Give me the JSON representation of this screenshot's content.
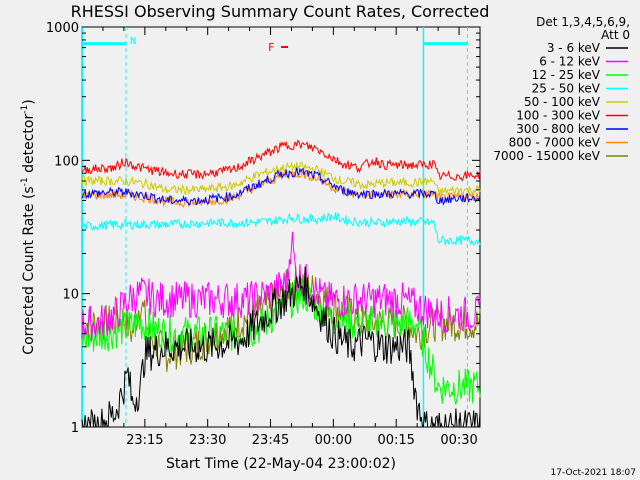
{
  "chart_data": {
    "type": "line",
    "title": "RHESSI Observing Summary Count Rates, Corrected",
    "xlabel": "Start Time (22-May-04 23:00:02)",
    "ylabel_main": "Corrected Count Rate (s",
    "ylabel_sup1": "-1",
    "ylabel_mid": " detector",
    "ylabel_sup2": "-1",
    "ylabel_end": ")",
    "yscale": "log",
    "ylim": [
      1,
      1000
    ],
    "xlim_minutes": [
      0,
      95
    ],
    "x_ticks": [
      {
        "m": 15,
        "label": "23:15"
      },
      {
        "m": 30,
        "label": "23:30"
      },
      {
        "m": 45,
        "label": "23:45"
      },
      {
        "m": 60,
        "label": "00:00"
      },
      {
        "m": 75,
        "label": "00:15"
      },
      {
        "m": 90,
        "label": "00:30"
      }
    ],
    "y_ticks": [
      {
        "v": 1,
        "label": "1"
      },
      {
        "v": 10,
        "label": "10"
      },
      {
        "v": 100,
        "label": "100"
      },
      {
        "v": 1000,
        "label": "1000"
      }
    ],
    "legend_header": [
      "Det 1,3,4,5,6,9,",
      "Att 0"
    ],
    "series": [
      {
        "name": "3 - 6 keV",
        "color": "#000000",
        "points": [
          [
            0,
            1
          ],
          [
            4,
            1
          ],
          [
            8,
            1.3
          ],
          [
            11,
            2.5
          ],
          [
            12,
            1.5
          ],
          [
            14,
            2
          ],
          [
            15,
            3.5
          ],
          [
            20,
            4
          ],
          [
            30,
            4
          ],
          [
            38,
            4.5
          ],
          [
            42,
            6
          ],
          [
            46,
            8
          ],
          [
            50,
            10
          ],
          [
            53,
            12
          ],
          [
            56,
            8
          ],
          [
            60,
            5
          ],
          [
            64,
            4
          ],
          [
            68,
            4.5
          ],
          [
            72,
            4
          ],
          [
            78,
            4
          ],
          [
            80,
            1.5
          ],
          [
            82,
            1
          ],
          [
            86,
            1
          ],
          [
            95,
            1
          ]
        ]
      },
      {
        "name": "6 - 12 keV",
        "color": "#ff00ff",
        "points": [
          [
            0,
            6
          ],
          [
            4,
            6
          ],
          [
            8,
            7
          ],
          [
            11,
            9
          ],
          [
            14,
            10
          ],
          [
            18,
            9
          ],
          [
            26,
            9
          ],
          [
            34,
            9
          ],
          [
            40,
            9
          ],
          [
            45,
            10
          ],
          [
            49,
            12
          ],
          [
            50,
            28
          ],
          [
            51,
            14
          ],
          [
            54,
            12
          ],
          [
            58,
            9
          ],
          [
            62,
            9
          ],
          [
            70,
            9
          ],
          [
            76,
            9
          ],
          [
            80,
            8
          ],
          [
            85,
            7
          ],
          [
            95,
            7
          ]
        ]
      },
      {
        "name": "12 - 25 keV",
        "color": "#00ff00",
        "points": [
          [
            0,
            4.5
          ],
          [
            10,
            5.5
          ],
          [
            14,
            6
          ],
          [
            20,
            5
          ],
          [
            28,
            5
          ],
          [
            36,
            5
          ],
          [
            42,
            5.5
          ],
          [
            46,
            7
          ],
          [
            50,
            9
          ],
          [
            53,
            10
          ],
          [
            56,
            8
          ],
          [
            60,
            6.5
          ],
          [
            66,
            6
          ],
          [
            72,
            6
          ],
          [
            80,
            6
          ],
          [
            85,
            2
          ],
          [
            90,
            2
          ],
          [
            95,
            2
          ]
        ]
      },
      {
        "name": "25 - 50 keV",
        "color": "#00ffff",
        "points": [
          [
            0,
            32
          ],
          [
            10,
            33
          ],
          [
            20,
            33
          ],
          [
            30,
            34
          ],
          [
            40,
            34
          ],
          [
            45,
            35
          ],
          [
            50,
            37
          ],
          [
            55,
            36
          ],
          [
            60,
            38
          ],
          [
            64,
            35
          ],
          [
            70,
            34
          ],
          [
            76,
            35
          ],
          [
            84,
            34
          ],
          [
            85,
            25
          ],
          [
            90,
            25
          ],
          [
            95,
            25
          ]
        ]
      },
      {
        "name": "50 - 100 keV",
        "color": "#cccc00",
        "points": [
          [
            0,
            70
          ],
          [
            10,
            70
          ],
          [
            16,
            66
          ],
          [
            20,
            60
          ],
          [
            28,
            60
          ],
          [
            36,
            64
          ],
          [
            42,
            78
          ],
          [
            48,
            88
          ],
          [
            52,
            90
          ],
          [
            56,
            85
          ],
          [
            62,
            70
          ],
          [
            68,
            65
          ],
          [
            72,
            68
          ],
          [
            80,
            68
          ],
          [
            84,
            70
          ],
          [
            85,
            58
          ],
          [
            90,
            60
          ],
          [
            95,
            60
          ]
        ]
      },
      {
        "name": "100 - 300 keV",
        "color": "#ff0000",
        "points": [
          [
            0,
            85
          ],
          [
            8,
            88
          ],
          [
            10,
            98
          ],
          [
            14,
            88
          ],
          [
            20,
            80
          ],
          [
            28,
            78
          ],
          [
            36,
            85
          ],
          [
            42,
            105
          ],
          [
            48,
            128
          ],
          [
            52,
            132
          ],
          [
            56,
            122
          ],
          [
            62,
            95
          ],
          [
            66,
            88
          ],
          [
            70,
            100
          ],
          [
            72,
            92
          ],
          [
            80,
            92
          ],
          [
            84,
            94
          ],
          [
            85,
            76
          ],
          [
            90,
            76
          ],
          [
            95,
            78
          ]
        ]
      },
      {
        "name": "300 - 800 keV",
        "color": "#0000ff",
        "points": [
          [
            0,
            56
          ],
          [
            10,
            58
          ],
          [
            16,
            54
          ],
          [
            20,
            50
          ],
          [
            28,
            50
          ],
          [
            36,
            54
          ],
          [
            42,
            66
          ],
          [
            48,
            80
          ],
          [
            52,
            82
          ],
          [
            56,
            76
          ],
          [
            62,
            60
          ],
          [
            66,
            56
          ],
          [
            72,
            56
          ],
          [
            80,
            56
          ],
          [
            84,
            56
          ],
          [
            85,
            50
          ],
          [
            90,
            52
          ],
          [
            95,
            52
          ]
        ]
      },
      {
        "name": "800 - 7000 keV",
        "color": "#ff8800",
        "points": [
          [
            0,
            55
          ],
          [
            10,
            55
          ],
          [
            16,
            52
          ],
          [
            20,
            49
          ],
          [
            28,
            48
          ],
          [
            36,
            52
          ],
          [
            42,
            64
          ],
          [
            48,
            78
          ],
          [
            52,
            80
          ],
          [
            56,
            74
          ],
          [
            62,
            58
          ],
          [
            66,
            55
          ],
          [
            72,
            55
          ],
          [
            80,
            56
          ],
          [
            84,
            56
          ],
          [
            85,
            52
          ],
          [
            90,
            53
          ],
          [
            95,
            54
          ]
        ]
      },
      {
        "name": "7000 - 15000 keV",
        "color": "#808000",
        "points": [
          [
            0,
            6
          ],
          [
            6,
            6
          ],
          [
            10,
            6.5
          ],
          [
            12,
            5
          ],
          [
            14,
            9
          ],
          [
            16,
            5
          ],
          [
            20,
            3.5
          ],
          [
            26,
            4
          ],
          [
            32,
            5
          ],
          [
            36,
            6
          ],
          [
            42,
            7
          ],
          [
            46,
            9
          ],
          [
            50,
            12
          ],
          [
            53,
            12
          ],
          [
            56,
            10
          ],
          [
            60,
            8
          ],
          [
            64,
            7
          ],
          [
            68,
            6
          ],
          [
            72,
            6
          ],
          [
            78,
            6
          ],
          [
            80,
            5
          ],
          [
            84,
            6
          ],
          [
            86,
            6
          ],
          [
            95,
            6
          ]
        ]
      }
    ],
    "annotation_flare": "F",
    "annotation_night": "N",
    "footer_date": "17-Oct-2021 18:07"
  }
}
